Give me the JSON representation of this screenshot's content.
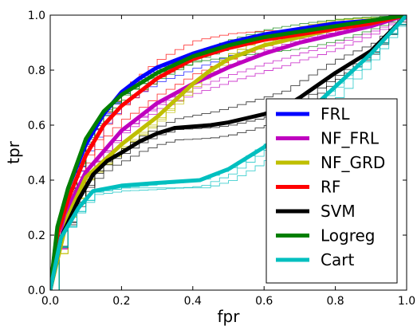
{
  "chart_data": {
    "type": "line",
    "title": "",
    "xlabel": "fpr",
    "ylabel": "tpr",
    "xlim": [
      0.0,
      1.0
    ],
    "ylim": [
      0.0,
      1.0
    ],
    "xticks": [
      "0.0",
      "0.2",
      "0.4",
      "0.6",
      "0.8",
      "1.0"
    ],
    "yticks": [
      "0.0",
      "0.2",
      "0.4",
      "0.6",
      "0.8",
      "1.0"
    ],
    "grid": false,
    "legend_position": "lower-right",
    "series": [
      {
        "name": "FRL",
        "color": "#0000ff",
        "x": [
          0,
          0.02,
          0.05,
          0.1,
          0.15,
          0.2,
          0.25,
          0.3,
          0.4,
          0.5,
          0.6,
          0.7,
          0.8,
          0.9,
          1.0
        ],
        "y": [
          0,
          0.22,
          0.37,
          0.53,
          0.64,
          0.72,
          0.77,
          0.81,
          0.86,
          0.9,
          0.93,
          0.95,
          0.97,
          0.98,
          1.0
        ]
      },
      {
        "name": "NF_FRL",
        "color": "#bf00bf",
        "x": [
          0,
          0.05,
          0.1,
          0.2,
          0.3,
          0.4,
          0.5,
          0.6,
          0.7,
          0.8,
          0.9,
          1.0
        ],
        "y": [
          0,
          0.3,
          0.43,
          0.58,
          0.68,
          0.75,
          0.81,
          0.86,
          0.9,
          0.93,
          0.96,
          1.0
        ]
      },
      {
        "name": "NF_GRD",
        "color": "#bfbf00",
        "x": [
          0,
          0.05,
          0.1,
          0.2,
          0.3,
          0.35,
          0.4,
          0.45,
          0.5,
          0.6,
          0.7,
          0.8,
          0.9,
          1.0
        ],
        "y": [
          0,
          0.27,
          0.41,
          0.53,
          0.63,
          0.69,
          0.75,
          0.8,
          0.84,
          0.89,
          0.92,
          0.95,
          0.97,
          1.0
        ]
      },
      {
        "name": "RF",
        "color": "#ff0000",
        "x": [
          0,
          0.02,
          0.05,
          0.1,
          0.15,
          0.2,
          0.3,
          0.4,
          0.5,
          0.6,
          0.7,
          0.8,
          0.9,
          1.0
        ],
        "y": [
          0,
          0.2,
          0.33,
          0.49,
          0.6,
          0.67,
          0.77,
          0.84,
          0.88,
          0.91,
          0.93,
          0.95,
          0.97,
          1.0
        ]
      },
      {
        "name": "SVM",
        "color": "#000000",
        "x": [
          0,
          0.03,
          0.08,
          0.12,
          0.16,
          0.2,
          0.25,
          0.3,
          0.35,
          0.4,
          0.45,
          0.5,
          0.55,
          0.6,
          0.65,
          0.7,
          0.8,
          0.9,
          1.0
        ],
        "y": [
          0,
          0.19,
          0.33,
          0.42,
          0.47,
          0.5,
          0.54,
          0.57,
          0.59,
          0.595,
          0.6,
          0.61,
          0.625,
          0.64,
          0.66,
          0.7,
          0.79,
          0.87,
          1.0
        ]
      },
      {
        "name": "Logreg",
        "color": "#007f00",
        "x": [
          0,
          0.02,
          0.05,
          0.1,
          0.15,
          0.2,
          0.3,
          0.4,
          0.5,
          0.6,
          0.7,
          0.8,
          0.9,
          1.0
        ],
        "y": [
          0,
          0.23,
          0.37,
          0.55,
          0.65,
          0.71,
          0.79,
          0.85,
          0.89,
          0.92,
          0.94,
          0.96,
          0.98,
          1.0
        ]
      },
      {
        "name": "Cart",
        "color": "#00bfbf",
        "x": [
          0,
          0.03,
          0.08,
          0.12,
          0.2,
          0.3,
          0.42,
          0.5,
          0.6,
          0.7,
          0.8,
          0.9,
          1.0
        ],
        "y": [
          0,
          0.19,
          0.3,
          0.36,
          0.38,
          0.39,
          0.4,
          0.44,
          0.52,
          0.62,
          0.74,
          0.86,
          1.0
        ]
      }
    ]
  }
}
